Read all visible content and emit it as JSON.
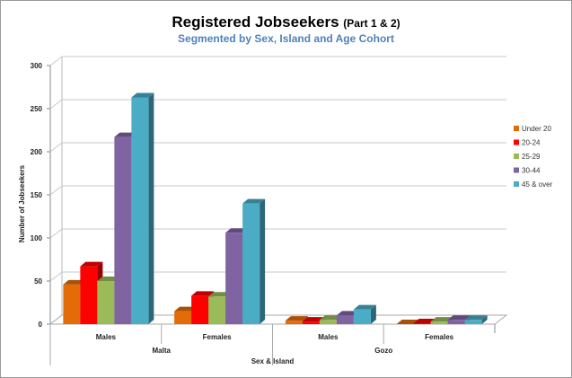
{
  "chart_data": {
    "type": "bar",
    "title": "Registered Jobseekers",
    "title_suffix": "(Part 1 & 2)",
    "subtitle": "Segmented by Sex, Island and Age Cohort",
    "xlabel": "Sex & Island",
    "ylabel": "Number of Jobseekers",
    "ylim": [
      0,
      300
    ],
    "yticks": [
      0,
      50,
      100,
      150,
      200,
      250,
      300
    ],
    "categories": [
      "Males",
      "Females",
      "Males",
      "Females"
    ],
    "groups": [
      {
        "label": "Malta",
        "span": [
          0,
          1
        ]
      },
      {
        "label": "Gozo",
        "span": [
          2,
          3
        ]
      }
    ],
    "legend_position": "right",
    "series": [
      {
        "name": "Under 20",
        "color": "#e36c09",
        "values": [
          46,
          15,
          4,
          0
        ]
      },
      {
        "name": "20-24",
        "color": "#ff0000",
        "values": [
          67,
          33,
          3,
          1
        ]
      },
      {
        "name": "25-29",
        "color": "#9bbb59",
        "values": [
          50,
          32,
          5,
          3
        ]
      },
      {
        "name": "30-44",
        "color": "#8064a2",
        "values": [
          217,
          106,
          10,
          5
        ]
      },
      {
        "name": "45 & over",
        "color": "#4bacc6",
        "values": [
          263,
          140,
          17,
          5
        ]
      }
    ]
  }
}
